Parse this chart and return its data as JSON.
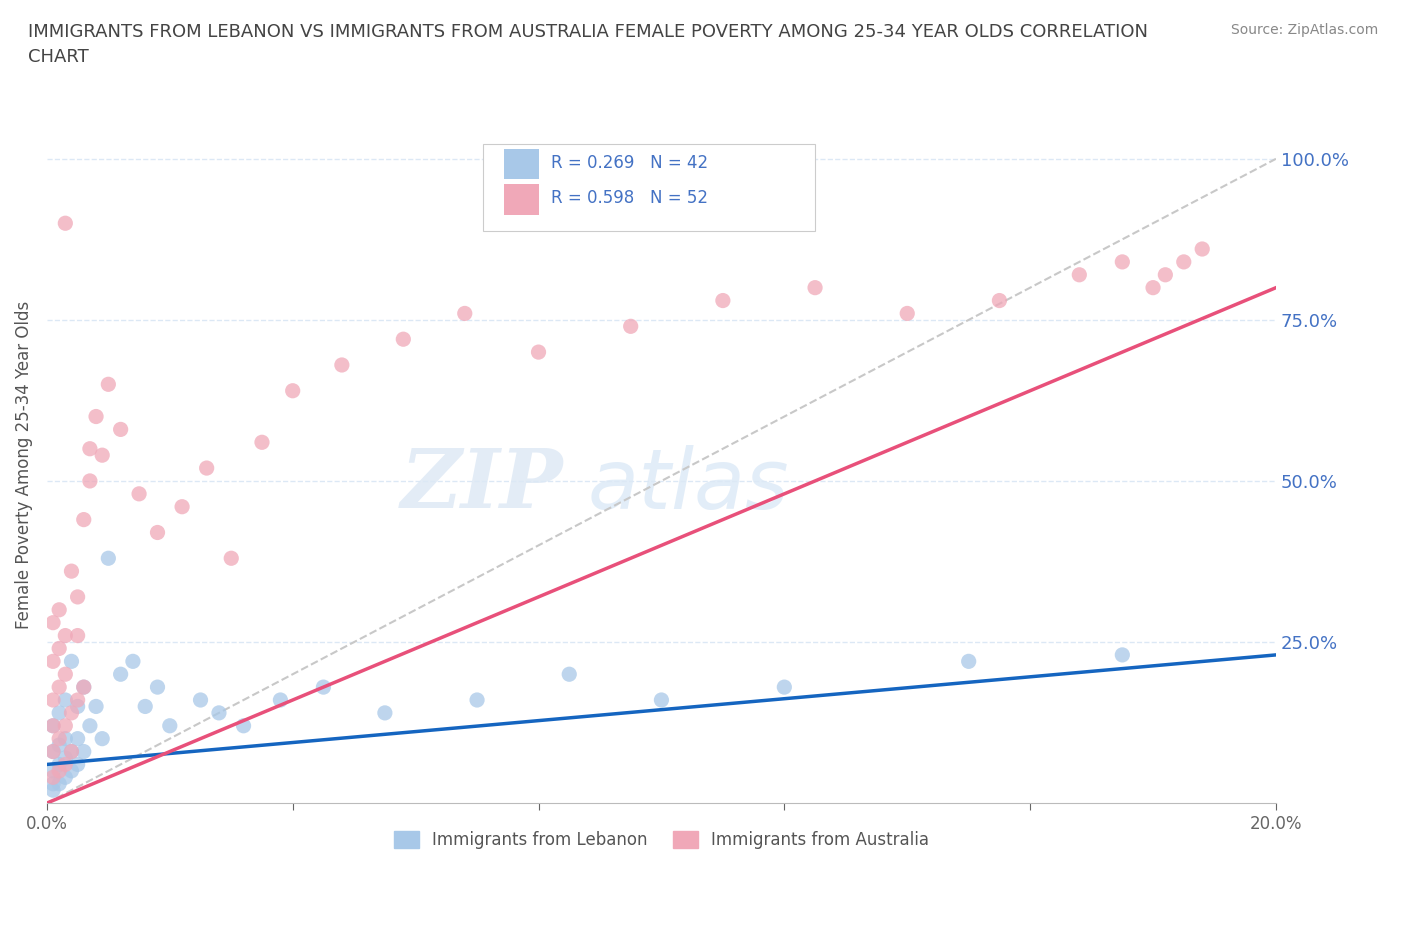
{
  "title": "IMMIGRANTS FROM LEBANON VS IMMIGRANTS FROM AUSTRALIA FEMALE POVERTY AMONG 25-34 YEAR OLDS CORRELATION\nCHART",
  "ylabel": "Female Poverty Among 25-34 Year Olds",
  "source": "Source: ZipAtlas.com",
  "watermark_zip": "ZIP",
  "watermark_atlas": "atlas",
  "xlim": [
    0.0,
    0.2
  ],
  "ylim": [
    0.0,
    1.05
  ],
  "xticks": [
    0.0,
    0.04,
    0.08,
    0.12,
    0.16,
    0.2
  ],
  "xticklabels": [
    "0.0%",
    "",
    "",
    "",
    "",
    "20.0%"
  ],
  "yticks": [
    0.0,
    0.25,
    0.5,
    0.75,
    1.0
  ],
  "yticklabels": [
    "",
    "25.0%",
    "50.0%",
    "75.0%",
    "100.0%"
  ],
  "legend_r1": "R = 0.269   N = 42",
  "legend_r2": "R = 0.598   N = 52",
  "legend_label1": "Immigrants from Lebanon",
  "legend_label2": "Immigrants from Australia",
  "color_lebanon": "#a8c8e8",
  "color_australia": "#f0a8b8",
  "line_color_lebanon": "#1565c0",
  "line_color_australia": "#e8507a",
  "scatter_alpha": 0.75,
  "scatter_size": 120,
  "lebanon_x": [
    0.001,
    0.001,
    0.001,
    0.001,
    0.001,
    0.002,
    0.002,
    0.002,
    0.002,
    0.003,
    0.003,
    0.003,
    0.003,
    0.004,
    0.004,
    0.004,
    0.005,
    0.005,
    0.005,
    0.006,
    0.006,
    0.007,
    0.008,
    0.009,
    0.01,
    0.012,
    0.014,
    0.016,
    0.018,
    0.02,
    0.025,
    0.028,
    0.032,
    0.038,
    0.045,
    0.055,
    0.07,
    0.085,
    0.1,
    0.12,
    0.15,
    0.175
  ],
  "lebanon_y": [
    0.02,
    0.03,
    0.05,
    0.08,
    0.12,
    0.03,
    0.06,
    0.09,
    0.14,
    0.04,
    0.07,
    0.1,
    0.16,
    0.05,
    0.08,
    0.22,
    0.06,
    0.1,
    0.15,
    0.08,
    0.18,
    0.12,
    0.15,
    0.1,
    0.38,
    0.2,
    0.22,
    0.15,
    0.18,
    0.12,
    0.16,
    0.14,
    0.12,
    0.16,
    0.18,
    0.14,
    0.16,
    0.2,
    0.16,
    0.18,
    0.22,
    0.23
  ],
  "australia_x": [
    0.001,
    0.001,
    0.001,
    0.001,
    0.001,
    0.001,
    0.002,
    0.002,
    0.002,
    0.002,
    0.002,
    0.003,
    0.003,
    0.003,
    0.003,
    0.004,
    0.004,
    0.004,
    0.005,
    0.005,
    0.006,
    0.006,
    0.007,
    0.007,
    0.008,
    0.009,
    0.01,
    0.012,
    0.015,
    0.018,
    0.022,
    0.026,
    0.03,
    0.035,
    0.04,
    0.048,
    0.058,
    0.068,
    0.08,
    0.095,
    0.11,
    0.125,
    0.14,
    0.155,
    0.168,
    0.175,
    0.18,
    0.182,
    0.185,
    0.188,
    0.003,
    0.005
  ],
  "australia_y": [
    0.04,
    0.08,
    0.12,
    0.16,
    0.22,
    0.28,
    0.05,
    0.1,
    0.18,
    0.24,
    0.3,
    0.06,
    0.12,
    0.2,
    0.26,
    0.08,
    0.14,
    0.36,
    0.16,
    0.26,
    0.18,
    0.44,
    0.5,
    0.55,
    0.6,
    0.54,
    0.65,
    0.58,
    0.48,
    0.42,
    0.46,
    0.52,
    0.38,
    0.56,
    0.64,
    0.68,
    0.72,
    0.76,
    0.7,
    0.74,
    0.78,
    0.8,
    0.76,
    0.78,
    0.82,
    0.84,
    0.8,
    0.82,
    0.84,
    0.86,
    0.9,
    0.32
  ],
  "bg_color": "#ffffff",
  "grid_color": "#dce8f5",
  "title_color": "#444444",
  "axis_label_color": "#555555",
  "tick_color_y": "#4472c4",
  "ref_line_color": "#c8c8c8"
}
